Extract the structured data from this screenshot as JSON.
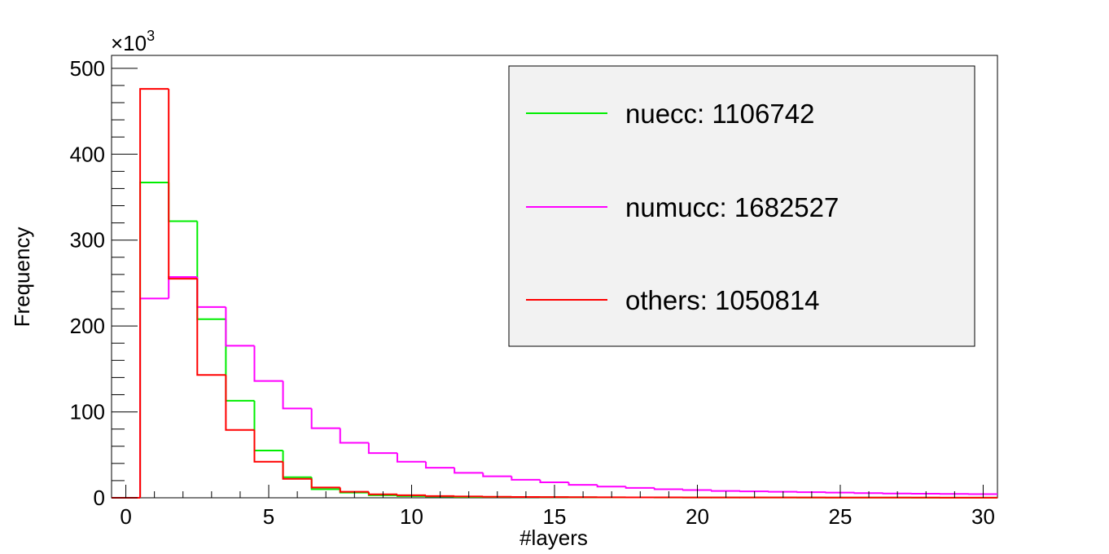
{
  "chart_data": {
    "type": "histogram-step",
    "xlabel": "#layers",
    "ylabel": "Frequency",
    "y_multiplier_label": "×10",
    "y_multiplier_exponent": "3",
    "xlim": [
      -0.5,
      30.5
    ],
    "ylim": [
      0,
      515
    ],
    "x_ticks": [
      0,
      5,
      10,
      15,
      20,
      25,
      30
    ],
    "y_ticks": [
      0,
      100,
      200,
      300,
      400,
      500
    ],
    "bin_width": 1,
    "bin_centers": [
      0,
      1,
      2,
      3,
      4,
      5,
      6,
      7,
      8,
      9,
      10,
      11,
      12,
      13,
      14,
      15,
      16,
      17,
      18,
      19,
      20,
      21,
      22,
      23,
      24,
      25,
      26,
      27,
      28,
      29,
      30
    ],
    "legend_position": "top-right",
    "series": [
      {
        "name": "nuecc: 1106742",
        "color": "#00ee00",
        "values": [
          0,
          367,
          322,
          208,
          113,
          55,
          24,
          10,
          6,
          3,
          2,
          1.5,
          1,
          1,
          0.8,
          0.7,
          0.6,
          0.5,
          0.5,
          0.4,
          0.4,
          0.3,
          0.3,
          0.3,
          0.2,
          0.2,
          0.2,
          0.2,
          0.1,
          0.1,
          0.1
        ]
      },
      {
        "name": "numucc: 1682527",
        "color": "#ff00ff",
        "values": [
          0,
          232,
          257,
          222,
          177,
          136,
          104,
          81,
          64,
          52,
          42,
          35,
          29,
          25,
          21,
          18,
          15,
          13,
          11.5,
          10,
          9,
          8,
          7.5,
          7,
          6.5,
          6,
          5.5,
          5,
          4.8,
          4.5,
          4.3
        ]
      },
      {
        "name": "others: 1050814",
        "color": "#ff0000",
        "values": [
          0,
          476,
          255,
          143,
          79,
          42,
          22,
          12,
          7,
          4,
          3,
          2,
          1.5,
          1.2,
          1,
          0.8,
          0.7,
          0.6,
          0.5,
          0.5,
          0.4,
          0.4,
          0.3,
          0.3,
          0.3,
          0.2,
          0.2,
          0.2,
          0.2,
          0.1,
          0.1
        ]
      }
    ]
  }
}
